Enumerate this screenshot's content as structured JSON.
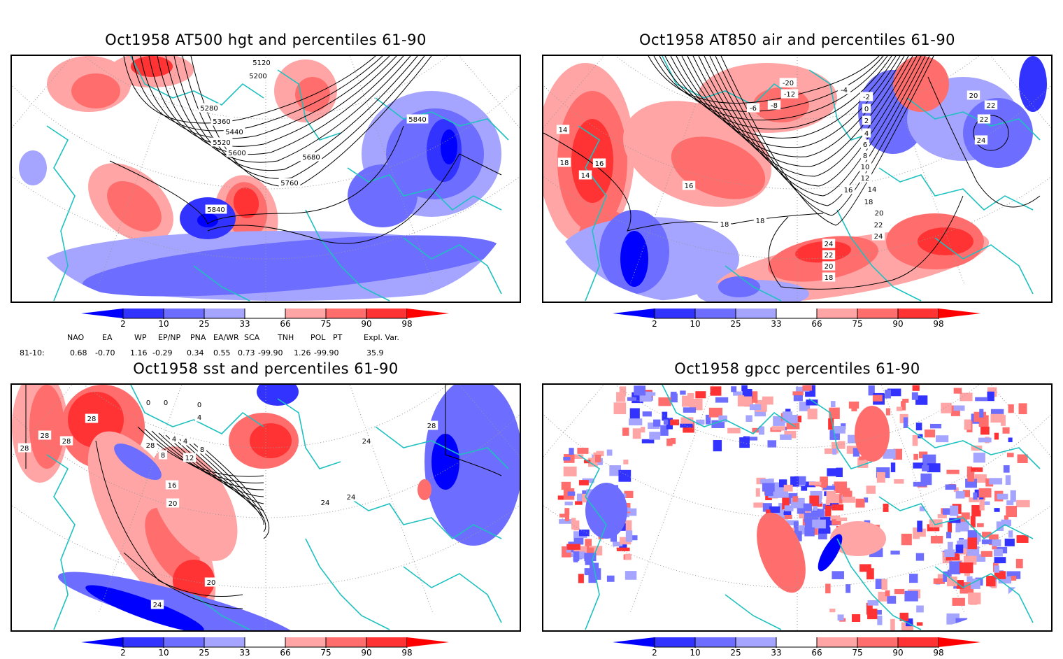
{
  "chart_data": [
    {
      "type": "heatmap",
      "title": "Oct1958 AT500 hgt and percentiles 61-90",
      "variable": "500 hPa geopotential height (contours) with percentile shading",
      "contour_labels": [
        "5120",
        "5200",
        "5280",
        "5360",
        "5440",
        "5520",
        "5600",
        "5680",
        "5760",
        "5840",
        "5840"
      ],
      "percentile_levels": [
        2,
        10,
        25,
        33,
        66,
        75,
        90,
        98
      ]
    },
    {
      "type": "heatmap",
      "title": "Oct1958 AT850 air and percentiles 61-90",
      "variable": "850 hPa air temperature (contours) with percentile shading",
      "contour_labels": [
        "-20",
        "-12",
        "-8",
        "-6",
        "-4",
        "-2",
        "0",
        "2",
        "4",
        "6",
        "8",
        "10",
        "12",
        "14",
        "16",
        "18",
        "20",
        "22",
        "24",
        "24",
        "22",
        "20",
        "18",
        "18",
        "18",
        "16",
        "14",
        "14",
        "16",
        "18",
        "20",
        "22",
        "22",
        "24"
      ],
      "percentile_levels": [
        2,
        10,
        25,
        33,
        66,
        75,
        90,
        98
      ]
    },
    {
      "type": "heatmap",
      "title": "Oct1958 sst and percentiles 61-90",
      "variable": "sea surface temperature (contours) with percentile shading",
      "contour_labels": [
        "0",
        "0",
        "0",
        "4",
        "4",
        "8",
        "12",
        "4",
        "8",
        "16",
        "20",
        "24",
        "24",
        "28",
        "28",
        "28",
        "28",
        "20",
        "24",
        "24",
        "28",
        "28"
      ],
      "percentile_levels": [
        2,
        10,
        25,
        33,
        66,
        75,
        90,
        98
      ]
    },
    {
      "type": "heatmap",
      "title": "Oct1958 gpcc percentiles 61-90",
      "variable": "precipitation percentiles",
      "contour_labels": [],
      "percentile_levels": [
        2,
        10,
        25,
        33,
        66,
        75,
        90,
        98
      ]
    }
  ],
  "colorbar": {
    "labels": [
      "2",
      "10",
      "25",
      "33",
      "66",
      "75",
      "90",
      "98"
    ],
    "colors": [
      "#0000ff",
      "#3333ff",
      "#6d6dff",
      "#a5a5ff",
      "#ffffff",
      "#ffa5a5",
      "#ff6d6d",
      "#ff3333",
      "#ff0000"
    ]
  },
  "indices": {
    "headers": [
      "NAO",
      "EA",
      "WP",
      "EP/NP",
      "PNA",
      "EA/WR",
      "SCA",
      "TNH",
      "POL",
      "PT",
      "Expl. Var."
    ],
    "row_label": "81-10:",
    "values": [
      "0.68",
      "-0.70",
      "1.16",
      "-0.29",
      "0.34",
      "0.55",
      "0.73",
      "-99.90",
      "1.26",
      "-99.90",
      "35.9"
    ]
  },
  "colors": {
    "coast": "#1fc0c0",
    "contour": "#000000",
    "grid": "#999999"
  }
}
